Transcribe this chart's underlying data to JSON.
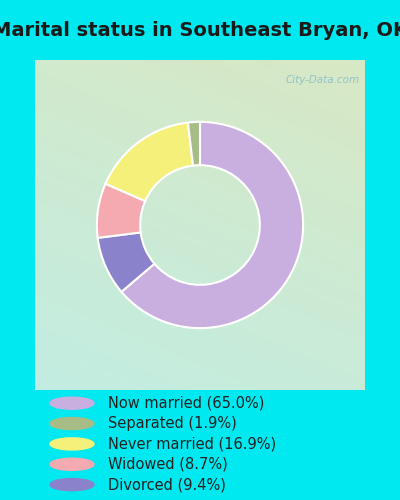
{
  "title": "Marital status in Southeast Bryan, OK",
  "chart_values": [
    65.0,
    9.4,
    8.7,
    16.9,
    1.9
  ],
  "chart_colors": [
    "#c9aee0",
    "#8b82cc",
    "#f4aab0",
    "#f5f07a",
    "#a8bc88"
  ],
  "startangle": 90,
  "legend_labels": [
    "Now married (65.0%)",
    "Separated (1.9%)",
    "Never married (16.9%)",
    "Widowed (8.7%)",
    "Divorced (9.4%)"
  ],
  "legend_colors": [
    "#c9aee0",
    "#a8bc88",
    "#f5f07a",
    "#f4aab0",
    "#8b82cc"
  ],
  "watermark": "City-Data.com",
  "title_fontsize": 14,
  "legend_fontsize": 10.5,
  "bg_color_tl": "#c2ede2",
  "bg_color_br": "#d8e8c0",
  "legend_bg": "#00e8f0",
  "figsize": [
    4.0,
    5.0
  ],
  "dpi": 100
}
